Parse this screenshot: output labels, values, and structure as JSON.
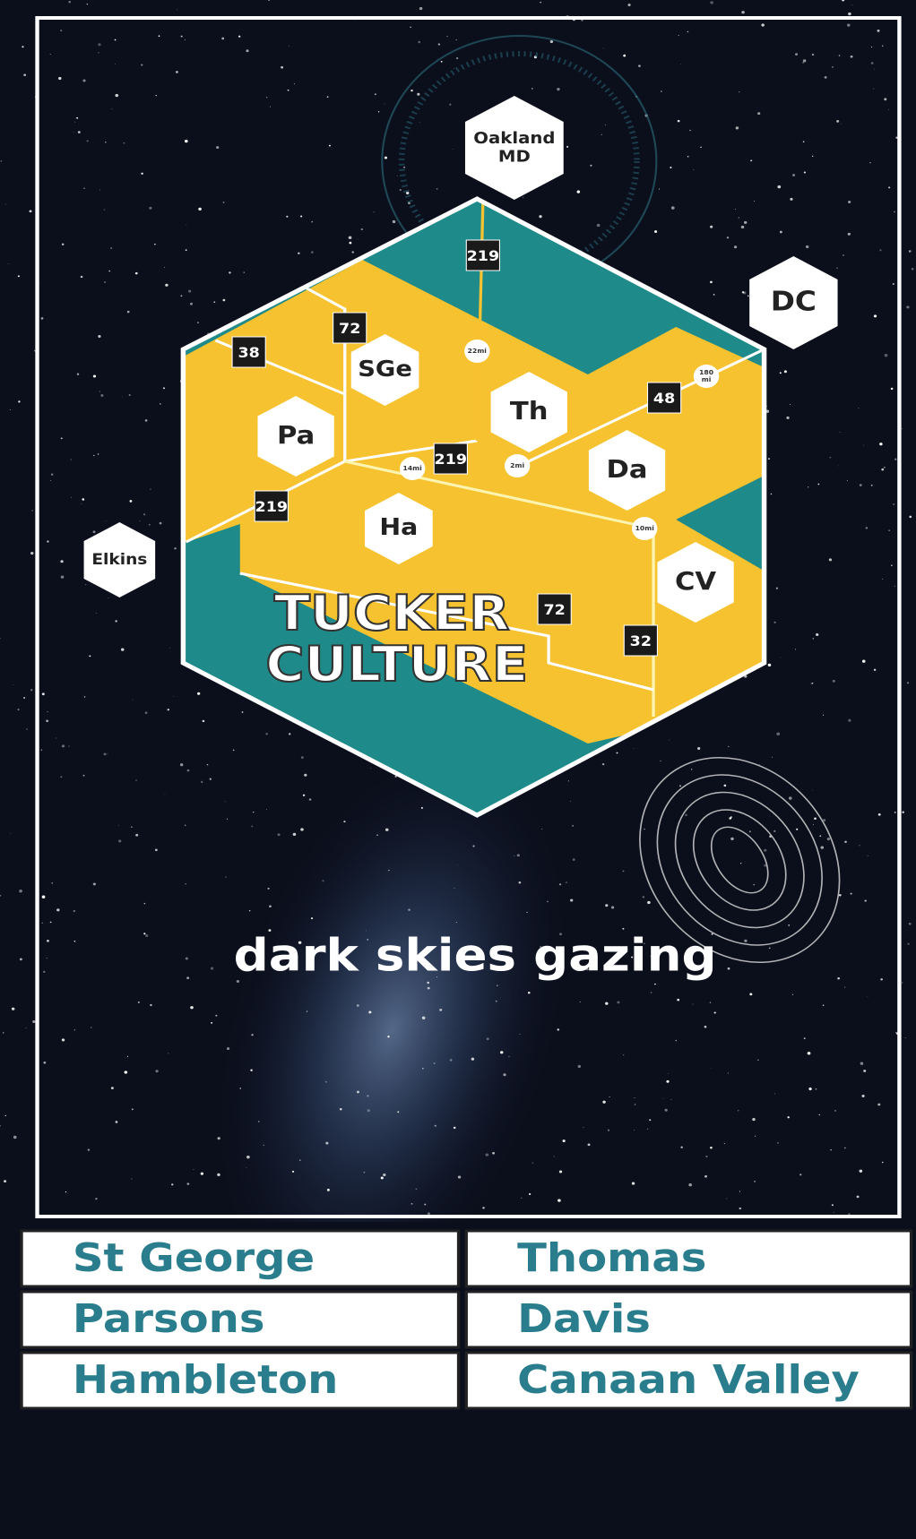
{
  "poster": {
    "title": [
      "TUCKER",
      "CULTURE"
    ],
    "tagline": "dark skies gazing"
  },
  "nodes": [
    {
      "lines": [
        "Oakland",
        "MD"
      ]
    },
    {
      "lines": [
        "DC"
      ]
    },
    {
      "lines": [
        "Elkins"
      ]
    },
    {
      "lines": [
        "SGe"
      ]
    },
    {
      "lines": [
        "Pa"
      ]
    },
    {
      "lines": [
        "Th"
      ]
    },
    {
      "lines": [
        "Da"
      ]
    },
    {
      "lines": [
        "Ha"
      ]
    },
    {
      "lines": [
        "CV"
      ]
    }
  ],
  "routes": [
    "219",
    "72",
    "38",
    "48",
    "219",
    "219",
    "72",
    "32"
  ],
  "distances": [
    {
      "lines": [
        "22mi"
      ]
    },
    {
      "lines": [
        "14mi"
      ]
    },
    {
      "lines": [
        "2mi"
      ]
    },
    {
      "lines": [
        "10mi"
      ]
    },
    {
      "lines": [
        "180",
        "mi"
      ]
    }
  ],
  "table": {
    "rows": [
      [
        "St George",
        "Thomas"
      ],
      [
        "Parsons",
        "Davis"
      ],
      [
        "Hambleton",
        "Canaan Valley"
      ]
    ]
  }
}
